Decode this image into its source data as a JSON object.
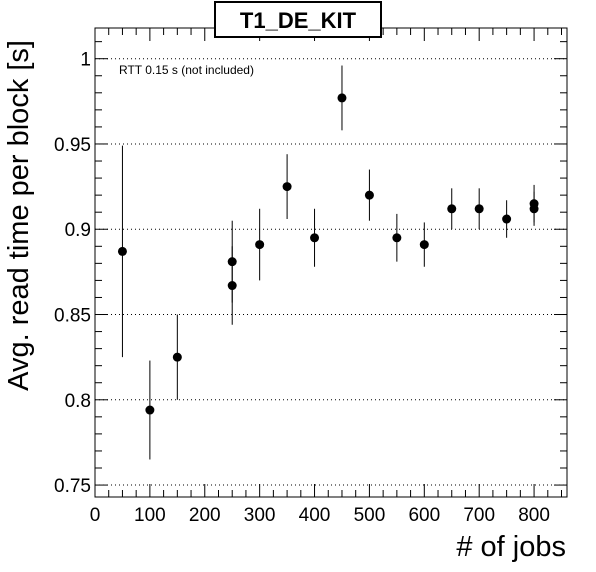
{
  "chart_data": {
    "type": "scatter",
    "title": "T1_DE_KIT",
    "xlabel": "# of jobs",
    "ylabel": "Avg. read time per block [s]",
    "annotation": "RTT 0.15 s (not included)",
    "xlim": [
      0,
      860
    ],
    "ylim": [
      0.743,
      1.018
    ],
    "xticks": [
      0,
      100,
      200,
      300,
      400,
      500,
      600,
      700,
      800
    ],
    "xtick_labels": [
      "0",
      "100",
      "200",
      "300",
      "400",
      "500",
      "600",
      "700",
      "800"
    ],
    "yticks": [
      0.75,
      0.8,
      0.85,
      0.9,
      0.95,
      1.0
    ],
    "ytick_labels": [
      "0.75",
      "0.8",
      "0.85",
      "0.9",
      "0.95",
      "1"
    ],
    "grid": "horizontal-dotted",
    "marker_color": "#000000",
    "points": [
      {
        "x": 50,
        "y": 0.887,
        "err": 0.062
      },
      {
        "x": 100,
        "y": 0.794,
        "err": 0.029
      },
      {
        "x": 150,
        "y": 0.825,
        "err": 0.025
      },
      {
        "x": 250,
        "y": 0.881,
        "err": 0.024
      },
      {
        "x": 250,
        "y": 0.867,
        "err": 0.023
      },
      {
        "x": 300,
        "y": 0.891,
        "err": 0.021
      },
      {
        "x": 350,
        "y": 0.925,
        "err": 0.019
      },
      {
        "x": 400,
        "y": 0.895,
        "err": 0.017
      },
      {
        "x": 450,
        "y": 0.977,
        "err": 0.019
      },
      {
        "x": 500,
        "y": 0.92,
        "err": 0.015
      },
      {
        "x": 550,
        "y": 0.895,
        "err": 0.014
      },
      {
        "x": 600,
        "y": 0.891,
        "err": 0.013
      },
      {
        "x": 650,
        "y": 0.912,
        "err": 0.012
      },
      {
        "x": 700,
        "y": 0.912,
        "err": 0.012
      },
      {
        "x": 750,
        "y": 0.906,
        "err": 0.011
      },
      {
        "x": 800,
        "y": 0.915,
        "err": 0.011
      },
      {
        "x": 800,
        "y": 0.912,
        "err": 0.01
      }
    ]
  }
}
